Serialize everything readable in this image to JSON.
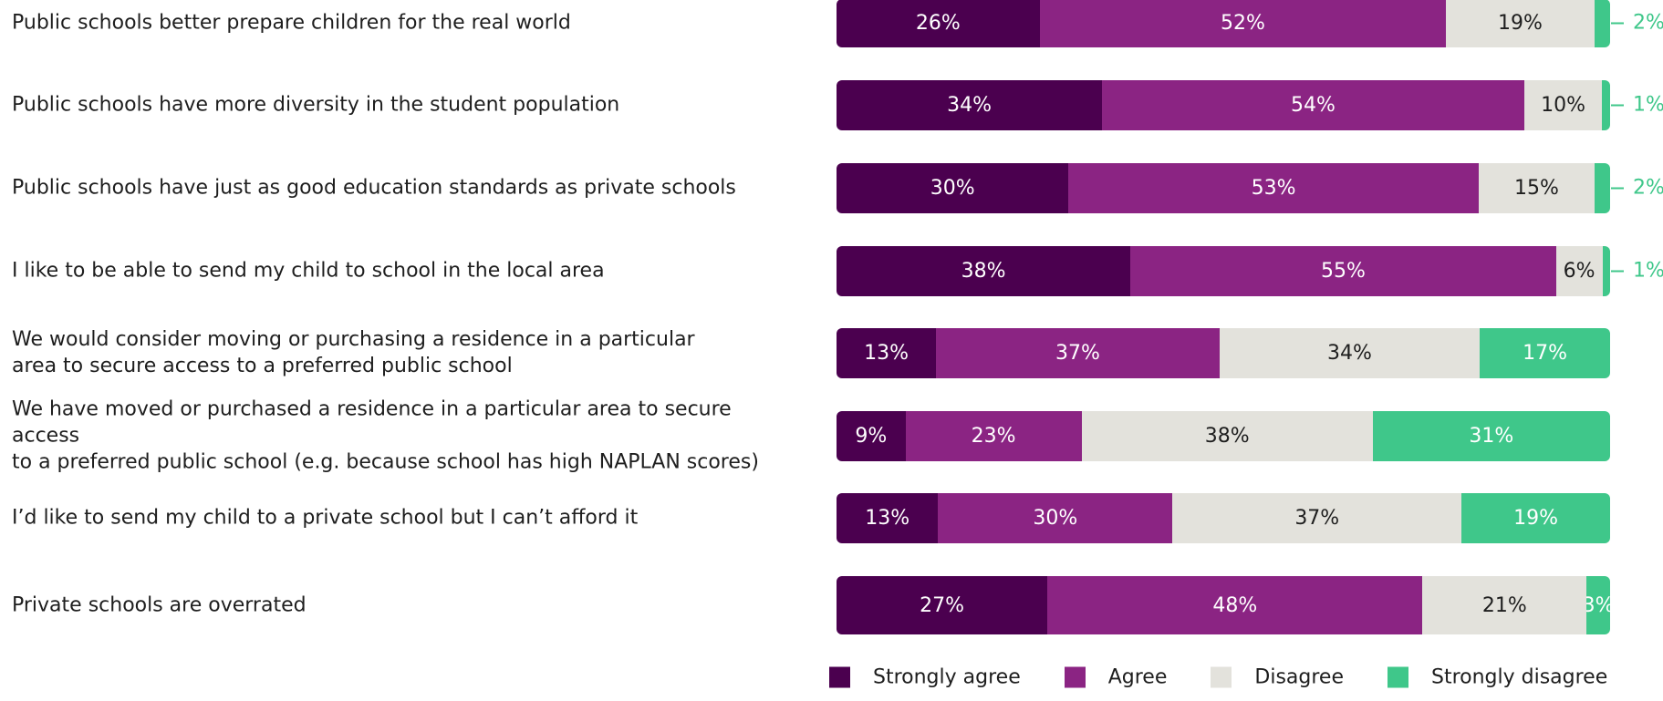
{
  "chart_data": {
    "type": "bar",
    "orientation": "horizontal",
    "stacked": true,
    "value_unit": "%",
    "categories": [
      "Public schools better prepare children for the real world",
      "Public schools have more diversity in the student population",
      "Public schools have just as good education standards as private schools",
      "I like to be able to send my child to school in the local area",
      "We would consider moving or purchasing a residence in a particular\narea to secure access to a preferred public school",
      "We have moved or purchased a residence in a particular area to secure access\nto a preferred public school (e.g. because school has high NAPLAN scores)",
      "I’d like to send my child to a private school but I can’t afford it",
      "Private schools are overrated"
    ],
    "series": [
      {
        "name": "Strongly agree",
        "color": "#4b004f",
        "label_color": "#ffffff",
        "values": [
          26,
          34,
          30,
          38,
          13,
          9,
          13,
          27
        ]
      },
      {
        "name": "Agree",
        "color": "#8b2483",
        "label_color": "#ffffff",
        "values": [
          52,
          54,
          53,
          55,
          37,
          23,
          30,
          48
        ]
      },
      {
        "name": "Disagree",
        "color": "#e3e2dc",
        "label_color": "#1e1e1e",
        "values": [
          19,
          10,
          15,
          6,
          34,
          38,
          37,
          21
        ]
      },
      {
        "name": "Strongly disagree",
        "color": "#3fc78a",
        "label_color": "#ffffff",
        "values": [
          2,
          1,
          2,
          1,
          17,
          31,
          19,
          3
        ]
      }
    ],
    "value_labels": [
      [
        "26%",
        "52%",
        "19%",
        "2%"
      ],
      [
        "34%",
        "54%",
        "10%",
        "1%"
      ],
      [
        "30%",
        "53%",
        "15%",
        "2%"
      ],
      [
        "38%",
        "55%",
        "6%",
        "1%"
      ],
      [
        "13%",
        "37%",
        "34%",
        "17%"
      ],
      [
        "9%",
        "23%",
        "38%",
        "31%"
      ],
      [
        "13%",
        "30%",
        "37%",
        "19%"
      ],
      [
        "27%",
        "48%",
        "21%",
        "3%"
      ]
    ],
    "outside_label_series": "Strongly disagree",
    "outside_label_color": "#3fc78a",
    "outside_label_rows": [
      0,
      1,
      2,
      3
    ],
    "legend": {
      "position": "bottom-right"
    },
    "grid": false
  }
}
